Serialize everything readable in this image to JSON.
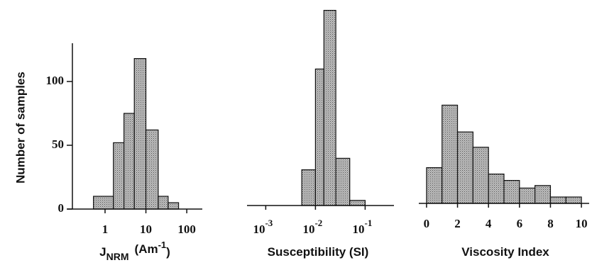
{
  "chart_data": [
    {
      "type": "histogram",
      "log_x": true,
      "ylabel": "Number of samples",
      "xlabel": {
        "main": "J",
        "sub": "NRM",
        "unit": "(Am",
        "sup": "-1",
        "close": ")"
      },
      "bins": [
        0.52,
        1.6,
        2.9,
        5.2,
        10,
        20,
        35,
        63
      ],
      "counts": [
        10,
        52,
        75,
        118,
        62,
        10,
        5
      ],
      "xlim": [
        0.12,
        240
      ],
      "xticks": [
        1,
        10,
        100
      ],
      "ylim": [
        0,
        130
      ],
      "yticks": [
        0,
        50,
        100
      ]
    },
    {
      "type": "histogram",
      "log_x": true,
      "xlabel": {
        "main": "Susceptibility (SI)"
      },
      "bins": [
        0.0053,
        0.01,
        0.0148,
        0.0257,
        0.049,
        0.1
      ],
      "counts": [
        28,
        107,
        153,
        37,
        4
      ],
      "xlim": [
        0.00042,
        0.38
      ],
      "xticks": [
        {
          "value": 0.001,
          "label": "10",
          "exponent": "-3"
        },
        {
          "value": 0.01,
          "label": "10",
          "exponent": "-2"
        },
        {
          "value": 0.1,
          "label": "10",
          "exponent": "-1"
        }
      ],
      "ylim": [
        0,
        160
      ]
    },
    {
      "type": "histogram",
      "log_x": false,
      "xlabel": {
        "main": "Viscosity Index"
      },
      "bins": [
        0,
        1,
        2,
        3,
        4,
        5,
        6,
        7,
        8,
        9,
        10
      ],
      "counts": [
        28,
        77,
        56,
        44,
        23,
        18,
        12,
        14,
        5,
        5
      ],
      "xlim": [
        -0.5,
        10.5
      ],
      "xticks": [
        0,
        2,
        4,
        6,
        8,
        10
      ],
      "ylim": [
        0,
        130
      ]
    }
  ]
}
